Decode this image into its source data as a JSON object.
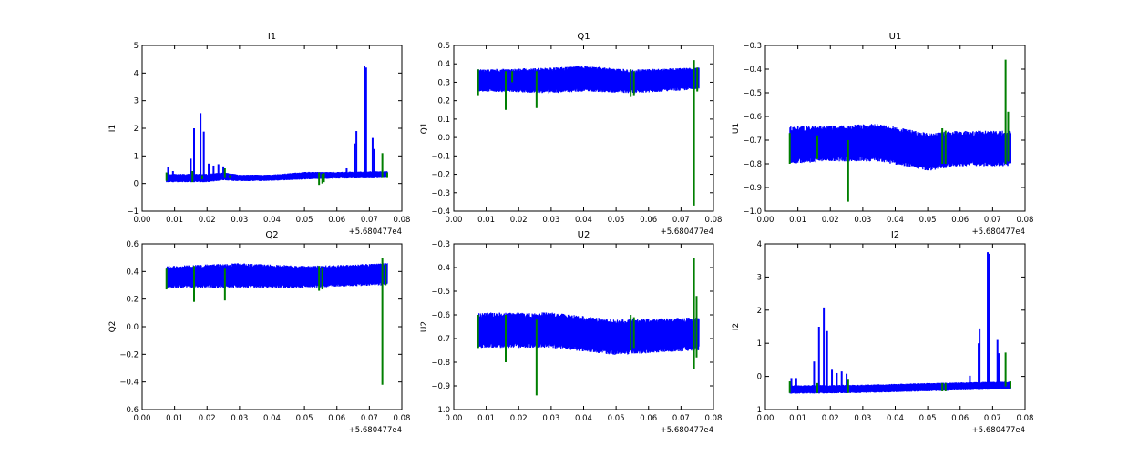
{
  "chart_data": [
    {
      "type": "line",
      "title": "I1",
      "ylabel": "I1",
      "xlabel": "",
      "xlim": [
        0,
        0.08
      ],
      "ylim": [
        -1,
        5
      ],
      "xticks": [
        "0.00",
        "0.01",
        "0.02",
        "0.03",
        "0.04",
        "0.05",
        "0.06",
        "0.07",
        "0.08"
      ],
      "yticks": [
        "−1",
        "0",
        "1",
        "2",
        "3",
        "4",
        "5"
      ],
      "offset_text": "+5.680477e4",
      "band": [
        [
          0.0075,
          0.05,
          0.35
        ],
        [
          0.02,
          0.05,
          0.35
        ],
        [
          0.025,
          0.12,
          0.4
        ],
        [
          0.03,
          0.08,
          0.32
        ],
        [
          0.04,
          0.1,
          0.32
        ],
        [
          0.05,
          0.15,
          0.42
        ],
        [
          0.06,
          0.18,
          0.42
        ],
        [
          0.0755,
          0.2,
          0.45
        ]
      ],
      "blue_spikes": [
        [
          0.008,
          0.6
        ],
        [
          0.0095,
          0.45
        ],
        [
          0.011,
          0.3
        ],
        [
          0.015,
          0.9
        ],
        [
          0.016,
          2.0
        ],
        [
          0.018,
          2.55
        ],
        [
          0.019,
          1.88
        ],
        [
          0.0205,
          0.72
        ],
        [
          0.022,
          0.65
        ],
        [
          0.0235,
          0.7
        ],
        [
          0.025,
          0.62
        ],
        [
          0.063,
          0.55
        ],
        [
          0.0655,
          1.45
        ],
        [
          0.066,
          1.9
        ],
        [
          0.0685,
          4.25
        ],
        [
          0.069,
          4.2
        ],
        [
          0.071,
          1.65
        ],
        [
          0.0715,
          1.25
        ]
      ],
      "green_spikes": [
        [
          0.0075,
          0.1,
          0.4
        ],
        [
          0.0155,
          0.05,
          0.45
        ],
        [
          0.0185,
          0.15,
          0.3
        ],
        [
          0.0255,
          0.2,
          0.55
        ],
        [
          0.027,
          0.2,
          0.3
        ],
        [
          0.0545,
          -0.05,
          0.4
        ],
        [
          0.0555,
          0.0,
          0.35
        ],
        [
          0.056,
          0.05,
          0.38
        ],
        [
          0.074,
          0.2,
          1.1
        ],
        [
          0.0755,
          0.2,
          0.4
        ]
      ]
    },
    {
      "type": "line",
      "title": "Q1",
      "ylabel": "Q1",
      "xlabel": "",
      "xlim": [
        0,
        0.08
      ],
      "ylim": [
        -0.4,
        0.5
      ],
      "xticks": [
        "0.00",
        "0.01",
        "0.02",
        "0.03",
        "0.04",
        "0.05",
        "0.06",
        "0.07",
        "0.08"
      ],
      "yticks": [
        "−0.4",
        "−0.3",
        "−0.2",
        "−0.1",
        "0.0",
        "0.1",
        "0.2",
        "0.3",
        "0.4",
        "0.5"
      ],
      "offset_text": "+5.680477e4",
      "band": [
        [
          0.0075,
          0.25,
          0.37
        ],
        [
          0.03,
          0.24,
          0.38
        ],
        [
          0.04,
          0.25,
          0.39
        ],
        [
          0.055,
          0.24,
          0.37
        ],
        [
          0.0755,
          0.26,
          0.38
        ]
      ],
      "blue_spikes": [],
      "green_spikes": [
        [
          0.0075,
          0.23,
          0.37
        ],
        [
          0.016,
          0.15,
          0.36
        ],
        [
          0.018,
          0.3,
          0.36
        ],
        [
          0.0255,
          0.16,
          0.36
        ],
        [
          0.0545,
          0.22,
          0.37
        ],
        [
          0.0555,
          0.23,
          0.36
        ],
        [
          0.074,
          -0.37,
          0.42
        ],
        [
          0.075,
          0.25,
          0.38
        ]
      ]
    },
    {
      "type": "line",
      "title": "U1",
      "ylabel": "U1",
      "xlabel": "",
      "xlim": [
        0,
        0.08
      ],
      "ylim": [
        -1.0,
        -0.3
      ],
      "xticks": [
        "0.00",
        "0.01",
        "0.02",
        "0.03",
        "0.04",
        "0.05",
        "0.06",
        "0.07",
        "0.08"
      ],
      "yticks": [
        "−1.0",
        "−0.9",
        "−0.8",
        "−0.7",
        "−0.6",
        "−0.5",
        "−0.4",
        "−0.3"
      ],
      "offset_text": "+5.680477e4",
      "band": [
        [
          0.0075,
          -0.8,
          -0.64
        ],
        [
          0.02,
          -0.79,
          -0.64
        ],
        [
          0.035,
          -0.79,
          -0.63
        ],
        [
          0.05,
          -0.83,
          -0.67
        ],
        [
          0.06,
          -0.81,
          -0.66
        ],
        [
          0.0755,
          -0.81,
          -0.66
        ]
      ],
      "blue_spikes": [],
      "green_spikes": [
        [
          0.0075,
          -0.8,
          -0.67
        ],
        [
          0.016,
          -0.78,
          -0.68
        ],
        [
          0.0255,
          -0.96,
          -0.7
        ],
        [
          0.0545,
          -0.8,
          -0.65
        ],
        [
          0.0555,
          -0.8,
          -0.66
        ],
        [
          0.074,
          -0.8,
          -0.36
        ],
        [
          0.0748,
          -0.79,
          -0.58
        ]
      ]
    },
    {
      "type": "line",
      "title": "Q2",
      "ylabel": "Q2",
      "xlabel": "",
      "xlim": [
        0,
        0.08
      ],
      "ylim": [
        -0.6,
        0.6
      ],
      "xticks": [
        "0.00",
        "0.01",
        "0.02",
        "0.03",
        "0.04",
        "0.05",
        "0.06",
        "0.07",
        "0.08"
      ],
      "yticks": [
        "−0.6",
        "−0.4",
        "−0.2",
        "0.0",
        "0.2",
        "0.4",
        "0.6"
      ],
      "offset_text": "+5.680477e4",
      "band": [
        [
          0.0075,
          0.28,
          0.44
        ],
        [
          0.03,
          0.28,
          0.46
        ],
        [
          0.05,
          0.28,
          0.44
        ],
        [
          0.0755,
          0.3,
          0.46
        ]
      ],
      "blue_spikes": [],
      "green_spikes": [
        [
          0.0075,
          0.27,
          0.42
        ],
        [
          0.016,
          0.18,
          0.44
        ],
        [
          0.0255,
          0.19,
          0.42
        ],
        [
          0.0545,
          0.26,
          0.44
        ],
        [
          0.0555,
          0.27,
          0.43
        ],
        [
          0.074,
          -0.42,
          0.5
        ],
        [
          0.075,
          0.3,
          0.45
        ]
      ]
    },
    {
      "type": "line",
      "title": "U2",
      "ylabel": "U2",
      "xlabel": "",
      "xlim": [
        0,
        0.08
      ],
      "ylim": [
        -1.0,
        -0.3
      ],
      "xticks": [
        "0.00",
        "0.01",
        "0.02",
        "0.03",
        "0.04",
        "0.05",
        "0.06",
        "0.07",
        "0.08"
      ],
      "yticks": [
        "−1.0",
        "−0.9",
        "−0.8",
        "−0.7",
        "−0.6",
        "−0.5",
        "−0.4",
        "−0.3"
      ],
      "offset_text": "+5.680477e4",
      "band": [
        [
          0.0075,
          -0.74,
          -0.59
        ],
        [
          0.03,
          -0.74,
          -0.59
        ],
        [
          0.05,
          -0.77,
          -0.62
        ],
        [
          0.0755,
          -0.75,
          -0.61
        ]
      ],
      "blue_spikes": [],
      "green_spikes": [
        [
          0.0075,
          -0.74,
          -0.6
        ],
        [
          0.016,
          -0.8,
          -0.6
        ],
        [
          0.0255,
          -0.94,
          -0.62
        ],
        [
          0.0545,
          -0.75,
          -0.6
        ],
        [
          0.0555,
          -0.74,
          -0.61
        ],
        [
          0.074,
          -0.83,
          -0.36
        ],
        [
          0.0748,
          -0.78,
          -0.52
        ]
      ]
    },
    {
      "type": "line",
      "title": "I2",
      "ylabel": "I2",
      "xlabel": "",
      "xlim": [
        0,
        0.08
      ],
      "ylim": [
        -1,
        4
      ],
      "xticks": [
        "0.00",
        "0.01",
        "0.02",
        "0.03",
        "0.04",
        "0.05",
        "0.06",
        "0.07",
        "0.08"
      ],
      "yticks": [
        "−1",
        "0",
        "1",
        "2",
        "3",
        "4"
      ],
      "offset_text": "+5.680477e4",
      "band": [
        [
          0.0075,
          -0.52,
          -0.27
        ],
        [
          0.03,
          -0.5,
          -0.25
        ],
        [
          0.05,
          -0.45,
          -0.2
        ],
        [
          0.0755,
          -0.38,
          -0.15
        ]
      ],
      "blue_spikes": [
        [
          0.008,
          -0.05
        ],
        [
          0.0095,
          -0.05
        ],
        [
          0.015,
          0.45
        ],
        [
          0.0165,
          1.5
        ],
        [
          0.018,
          2.08
        ],
        [
          0.019,
          1.37
        ],
        [
          0.0205,
          0.2
        ],
        [
          0.022,
          0.1
        ],
        [
          0.0235,
          0.15
        ],
        [
          0.025,
          0.08
        ],
        [
          0.063,
          0.02
        ],
        [
          0.0657,
          1.0
        ],
        [
          0.066,
          1.45
        ],
        [
          0.0685,
          3.75
        ],
        [
          0.069,
          3.7
        ],
        [
          0.0715,
          1.1
        ],
        [
          0.072,
          0.7
        ]
      ],
      "green_spikes": [
        [
          0.0075,
          -0.5,
          -0.15
        ],
        [
          0.016,
          -0.5,
          -0.2
        ],
        [
          0.0255,
          -0.5,
          -0.1
        ],
        [
          0.0545,
          -0.45,
          -0.2
        ],
        [
          0.0555,
          -0.45,
          -0.2
        ],
        [
          0.074,
          -0.3,
          0.72
        ],
        [
          0.0755,
          -0.35,
          -0.15
        ]
      ]
    }
  ],
  "colors": {
    "series_blue": "#0000ff",
    "series_green": "#007f00"
  }
}
